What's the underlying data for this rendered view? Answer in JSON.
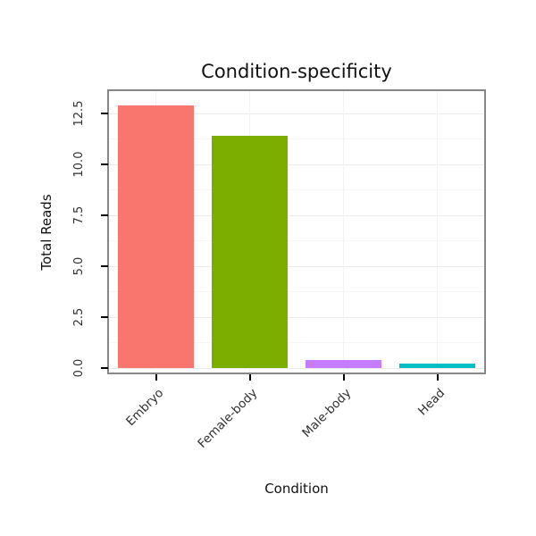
{
  "title": "Condition-specificity",
  "chart_data": {
    "type": "bar",
    "title": "Condition-specificity",
    "xlabel": "Condition",
    "ylabel": "Total Reads",
    "categories": [
      "Embryo",
      "Female-body",
      "Male-body",
      "Head"
    ],
    "values": [
      12.9,
      11.4,
      0.4,
      0.25
    ],
    "bar_colors": [
      "#F8766D",
      "#7CAE00",
      "#C77CFF",
      "#00BFC4"
    ],
    "yticks": [
      0.0,
      2.5,
      5.0,
      7.5,
      10.0,
      12.5
    ],
    "ytick_labels": [
      "0.0",
      "2.5",
      "5.0",
      "7.5",
      "10.0",
      "12.5"
    ],
    "ylim": [
      -0.2,
      13.6
    ],
    "grid": true,
    "legend": "none",
    "x_label_rotation_deg": 45,
    "panel_border_color": "#878787",
    "background_color": "#ffffff"
  }
}
